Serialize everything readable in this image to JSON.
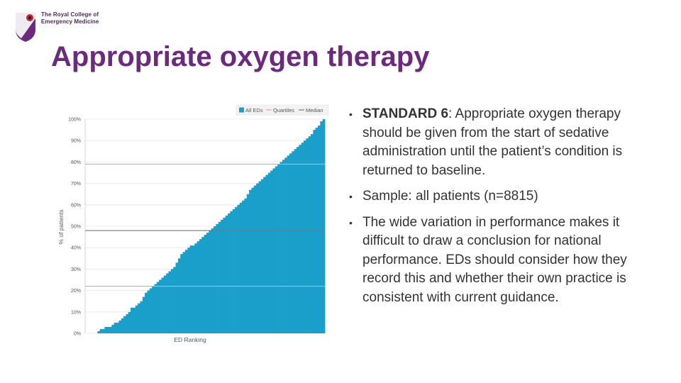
{
  "header": {
    "logo_line1": "The Royal College of",
    "logo_line2": "Emergency Medicine",
    "title": "Appropriate oxygen therapy"
  },
  "bullets": {
    "b1_strong": "STANDARD 6",
    "b1_rest": ": Appropriate oxygen therapy should be given from the start of sedative administration until the patient’s condition is returned to baseline.",
    "b2": "Sample: all patients (n=8815)",
    "b3": "The wide variation in performance makes it difficult to draw a conclusion for national performance. EDs should consider how they record this and whether their own practice is consistent with current guidance."
  },
  "colors": {
    "title": "#6b2a7c",
    "bars": "#1a9fca",
    "quartiles": "#e8a0a0",
    "median": "#777777"
  },
  "chart_data": {
    "type": "bar",
    "xlabel": "ED Ranking",
    "ylabel": "% of patients",
    "ylim": [
      0,
      100
    ],
    "yticks": [
      0,
      10,
      20,
      30,
      40,
      50,
      60,
      70,
      80,
      90,
      100
    ],
    "ytick_labels": [
      "0%",
      "10%",
      "20%",
      "30%",
      "40%",
      "50%",
      "60%",
      "70%",
      "80%",
      "90%",
      "100%"
    ],
    "grid": true,
    "legend_position": "top-right",
    "legend": [
      "All EDs",
      "Quartiles",
      "Median"
    ],
    "series": [
      {
        "name": "All EDs",
        "values": [
          0,
          1,
          2,
          2,
          3,
          3,
          3,
          4,
          5,
          5,
          6,
          7,
          8,
          9,
          10,
          12,
          12,
          13,
          14,
          15,
          17,
          19,
          20,
          21,
          22,
          23,
          24,
          25,
          26,
          27,
          28,
          29,
          30,
          31,
          33,
          35,
          37,
          38,
          39,
          40,
          41,
          41,
          42,
          43,
          44,
          45,
          46,
          47,
          48,
          49,
          50,
          51,
          52,
          53,
          54,
          55,
          56,
          57,
          58,
          59,
          60,
          61,
          62,
          63,
          65,
          67,
          68,
          69,
          70,
          71,
          72,
          73,
          74,
          75,
          76,
          77,
          78,
          79,
          80,
          81,
          82,
          83,
          84,
          85,
          86,
          87,
          88,
          89,
          90,
          91,
          92,
          93,
          95,
          96,
          97,
          99,
          100
        ]
      },
      {
        "name": "Quartiles",
        "values": [
          22,
          79
        ]
      },
      {
        "name": "Median",
        "values": [
          48
        ]
      }
    ]
  }
}
